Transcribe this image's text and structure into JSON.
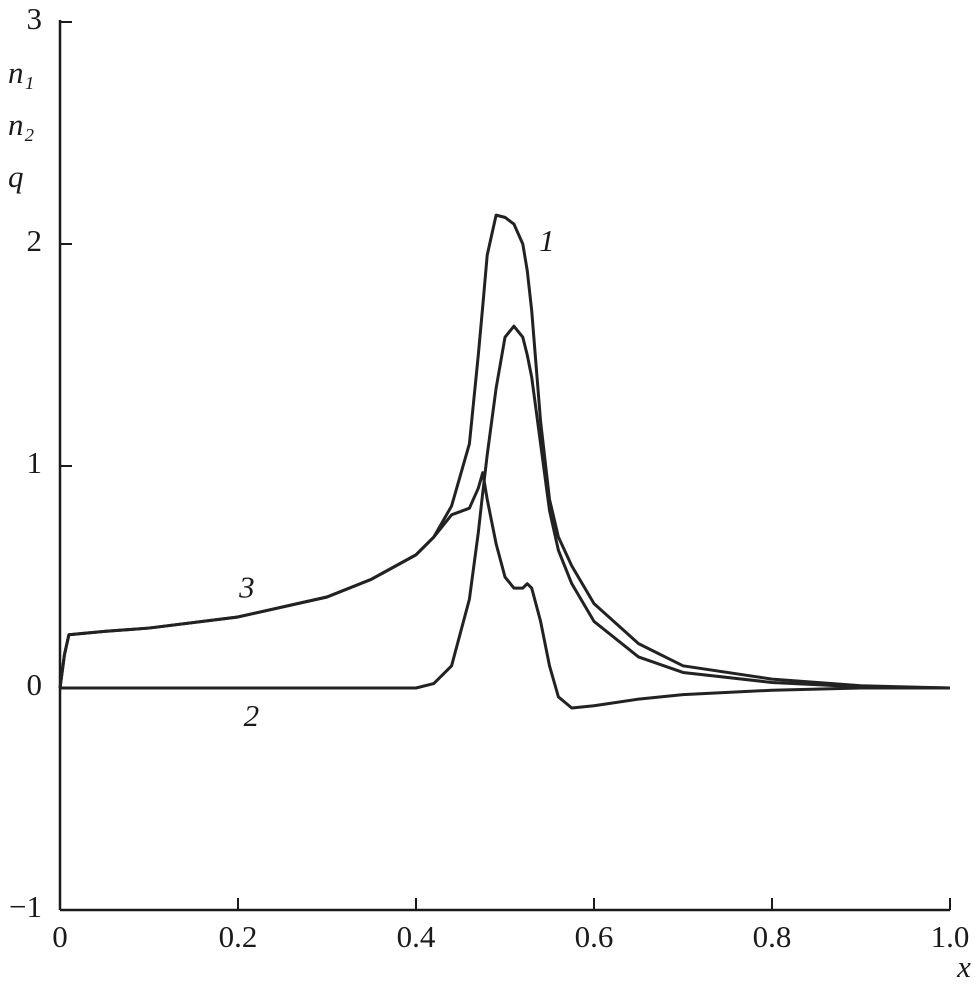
{
  "chart_data": {
    "type": "line",
    "ylabel": [
      "n₁",
      "n₂",
      "q"
    ],
    "xlabel": "x",
    "x": [
      0,
      0.005,
      0.01,
      0.05,
      0.1,
      0.2,
      0.3,
      0.35,
      0.4,
      0.42,
      0.44,
      0.46,
      0.47,
      0.475,
      0.48,
      0.49,
      0.5,
      0.51,
      0.52,
      0.525,
      0.53,
      0.54,
      0.55,
      0.56,
      0.575,
      0.6,
      0.65,
      0.7,
      0.8,
      0.9,
      1.0
    ],
    "series": [
      {
        "name": "1",
        "color": "#222222",
        "values": [
          0,
          0.15,
          0.24,
          0.255,
          0.27,
          0.32,
          0.41,
          0.49,
          0.6,
          0.68,
          0.82,
          1.1,
          1.5,
          1.72,
          1.95,
          2.13,
          2.12,
          2.09,
          2.0,
          1.88,
          1.7,
          1.2,
          0.85,
          0.68,
          0.55,
          0.38,
          0.2,
          0.1,
          0.04,
          0.01,
          0
        ]
      },
      {
        "name": "2",
        "color": "#222222",
        "values": [
          0,
          0,
          0,
          0,
          0,
          0,
          0,
          0,
          0,
          0.02,
          0.1,
          0.4,
          0.7,
          0.88,
          1.05,
          1.35,
          1.58,
          1.63,
          1.58,
          1.5,
          1.4,
          1.1,
          0.8,
          0.62,
          0.47,
          0.3,
          0.14,
          0.07,
          0.025,
          0.005,
          0
        ]
      },
      {
        "name": "3",
        "color": "#222222",
        "values": [
          0,
          0.15,
          0.24,
          0.255,
          0.27,
          0.32,
          0.41,
          0.49,
          0.6,
          0.68,
          0.78,
          0.81,
          0.9,
          0.97,
          0.85,
          0.65,
          0.5,
          0.45,
          0.45,
          0.47,
          0.45,
          0.3,
          0.1,
          -0.04,
          -0.09,
          -0.08,
          -0.05,
          -0.03,
          -0.01,
          0,
          0
        ]
      }
    ],
    "xlim": [
      0,
      1.0
    ],
    "ylim": [
      -1,
      3
    ],
    "xticks": [
      0,
      0.2,
      0.4,
      0.6,
      0.8,
      {
        "value": 1.0,
        "label": "1.0"
      }
    ],
    "yticks": [
      {
        "value": -1,
        "label": "−1"
      },
      0,
      1,
      2,
      3
    ],
    "grid": false
  }
}
